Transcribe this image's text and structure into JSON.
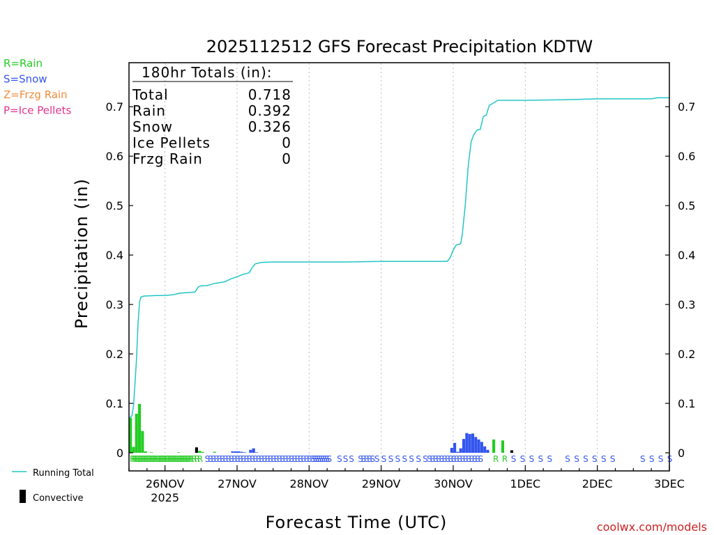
{
  "chart_data": {
    "type": "bar",
    "title": "2025112512 GFS Forecast Precipitation KDTW",
    "xlabel": "Forecast Time (UTC)",
    "ylabel": "Precipitation (in)",
    "ylim": [
      0,
      0.79
    ],
    "xlim_hours": [
      0,
      180
    ],
    "y_ticks": [
      "0",
      "0.1",
      "0.2",
      "0.3",
      "0.4",
      "0.5",
      "0.6",
      "0.7"
    ],
    "y_tick_values": [
      0,
      0.1,
      0.2,
      0.3,
      0.4,
      0.5,
      0.6,
      0.7
    ],
    "x_ticks": [
      {
        "label": "26NOV",
        "hour": 12,
        "sub": "2025"
      },
      {
        "label": "27NOV",
        "hour": 36
      },
      {
        "label": "28NOV",
        "hour": 60
      },
      {
        "label": "29NOV",
        "hour": 84
      },
      {
        "label": "30NOV",
        "hour": 108
      },
      {
        "label": "1DEC",
        "hour": 132
      },
      {
        "label": "2DEC",
        "hour": 156
      },
      {
        "label": "3DEC",
        "hour": 180
      }
    ],
    "legend_types": [
      {
        "label": "R=Rain",
        "color": "#22cc22"
      },
      {
        "label": "S=Snow",
        "color": "#3355ee"
      },
      {
        "label": "Z=Frzg Rain",
        "color": "#f08c3c"
      },
      {
        "label": "P=Ice Pellets",
        "color": "#e0338c"
      }
    ],
    "legend_bottom": [
      {
        "label": "Running Total",
        "color": "#22c5c5",
        "kind": "line"
      },
      {
        "label": "Convective",
        "color": "#000000",
        "kind": "bar"
      }
    ],
    "totals": {
      "heading": "180hr Totals (in):",
      "rows": [
        {
          "label": "Total",
          "value": "0.718"
        },
        {
          "label": "Rain",
          "value": "0.392"
        },
        {
          "label": "Snow",
          "value": "0.326"
        },
        {
          "label": "Ice Pellets",
          "value": "0"
        },
        {
          "label": "Frzg Rain",
          "value": "0"
        }
      ]
    },
    "running_total": [
      [
        0,
        0.07
      ],
      [
        1,
        0.075
      ],
      [
        1.5,
        0.095
      ],
      [
        2,
        0.14
      ],
      [
        2.5,
        0.19
      ],
      [
        3,
        0.26
      ],
      [
        3.5,
        0.305
      ],
      [
        4,
        0.315
      ],
      [
        5,
        0.317
      ],
      [
        9,
        0.318
      ],
      [
        12,
        0.318
      ],
      [
        15,
        0.32
      ],
      [
        17,
        0.323
      ],
      [
        22,
        0.325
      ],
      [
        23,
        0.335
      ],
      [
        24,
        0.338
      ],
      [
        26,
        0.338
      ],
      [
        28,
        0.342
      ],
      [
        30,
        0.344
      ],
      [
        32,
        0.346
      ],
      [
        34,
        0.352
      ],
      [
        36,
        0.356
      ],
      [
        38,
        0.361
      ],
      [
        40,
        0.364
      ],
      [
        41,
        0.374
      ],
      [
        42,
        0.382
      ],
      [
        44,
        0.385
      ],
      [
        48,
        0.386
      ],
      [
        60,
        0.386
      ],
      [
        72,
        0.386
      ],
      [
        84,
        0.387
      ],
      [
        96,
        0.387
      ],
      [
        106,
        0.387
      ],
      [
        107,
        0.395
      ],
      [
        108,
        0.41
      ],
      [
        109,
        0.42
      ],
      [
        110.5,
        0.423
      ],
      [
        111,
        0.44
      ],
      [
        112,
        0.5
      ],
      [
        113,
        0.58
      ],
      [
        114,
        0.63
      ],
      [
        115,
        0.645
      ],
      [
        116,
        0.653
      ],
      [
        117,
        0.654
      ],
      [
        118,
        0.68
      ],
      [
        119,
        0.683
      ],
      [
        120,
        0.703
      ],
      [
        121,
        0.706
      ],
      [
        122,
        0.71
      ],
      [
        123,
        0.713
      ],
      [
        132,
        0.713
      ],
      [
        144,
        0.714
      ],
      [
        150,
        0.715
      ],
      [
        156,
        0.716
      ],
      [
        168,
        0.716
      ],
      [
        174,
        0.716
      ],
      [
        176,
        0.718
      ],
      [
        180,
        0.718
      ]
    ],
    "bars": [
      {
        "hour": 0.5,
        "value": 0.071,
        "type": "R"
      },
      {
        "hour": 1.5,
        "value": 0.012,
        "type": "R"
      },
      {
        "hour": 2.5,
        "value": 0.079,
        "type": "R"
      },
      {
        "hour": 3.5,
        "value": 0.099,
        "type": "R"
      },
      {
        "hour": 4.5,
        "value": 0.044,
        "type": "R"
      },
      {
        "hour": 5.5,
        "value": 0.003,
        "type": "R"
      },
      {
        "hour": 7.5,
        "value": 0.001,
        "type": "R"
      },
      {
        "hour": 16.5,
        "value": 0.001,
        "type": "R"
      },
      {
        "hour": 22.5,
        "value": 0.011,
        "type": "C"
      },
      {
        "hour": 23.5,
        "value": 0.004,
        "type": "R"
      },
      {
        "hour": 24.5,
        "value": 0.002,
        "type": "R"
      },
      {
        "hour": 28.5,
        "value": 0.002,
        "type": "R"
      },
      {
        "hour": 34.5,
        "value": 0.003,
        "type": "S"
      },
      {
        "hour": 35.5,
        "value": 0.003,
        "type": "S"
      },
      {
        "hour": 36.5,
        "value": 0.003,
        "type": "S"
      },
      {
        "hour": 37.5,
        "value": 0.002,
        "type": "S"
      },
      {
        "hour": 38.5,
        "value": 0.001,
        "type": "S"
      },
      {
        "hour": 40.5,
        "value": 0.006,
        "type": "S"
      },
      {
        "hour": 41.5,
        "value": 0.009,
        "type": "S"
      },
      {
        "hour": 42.5,
        "value": 0.001,
        "type": "S"
      },
      {
        "hour": 107.5,
        "value": 0.01,
        "type": "S"
      },
      {
        "hour": 108.5,
        "value": 0.02,
        "type": "S"
      },
      {
        "hour": 109.5,
        "value": 0.002,
        "type": "S"
      },
      {
        "hour": 110.5,
        "value": 0.009,
        "type": "S"
      },
      {
        "hour": 111.5,
        "value": 0.028,
        "type": "S"
      },
      {
        "hour": 112.5,
        "value": 0.04,
        "type": "S"
      },
      {
        "hour": 113.5,
        "value": 0.038,
        "type": "S"
      },
      {
        "hour": 114.5,
        "value": 0.039,
        "type": "S"
      },
      {
        "hour": 115.5,
        "value": 0.032,
        "type": "S"
      },
      {
        "hour": 116.5,
        "value": 0.027,
        "type": "S"
      },
      {
        "hour": 117.5,
        "value": 0.022,
        "type": "S"
      },
      {
        "hour": 118.5,
        "value": 0.013,
        "type": "S"
      },
      {
        "hour": 119.5,
        "value": 0.006,
        "type": "S"
      },
      {
        "hour": 121.5,
        "value": 0.027,
        "type": "R"
      },
      {
        "hour": 124.5,
        "value": 0.025,
        "type": "R"
      },
      {
        "hour": 127.5,
        "value": 0.005,
        "type": "C"
      }
    ],
    "type_strips": [
      {
        "from": 0,
        "to": 19.5,
        "step": 0.5,
        "char": "R"
      },
      {
        "from": 19.5,
        "to": 23,
        "step": 1,
        "char": "R"
      },
      {
        "from": 25,
        "to": 60,
        "step": 1,
        "char": "S"
      },
      {
        "from": 60,
        "to": 66,
        "step": 0.7,
        "char": "S"
      },
      {
        "from": 69,
        "to": 75,
        "step": 2,
        "char": "S"
      },
      {
        "from": 76,
        "to": 81,
        "step": 1,
        "char": "S"
      },
      {
        "from": 81.5,
        "to": 98,
        "step": 2.3,
        "char": "S"
      },
      {
        "from": 99,
        "to": 117,
        "step": 1,
        "char": "S"
      },
      {
        "from": 121,
        "to": 123,
        "step": 3,
        "char": "R"
      },
      {
        "from": 124,
        "to": 126,
        "step": 3,
        "char": "R"
      },
      {
        "from": 127,
        "to": 140,
        "step": 3,
        "char": "S"
      },
      {
        "from": 145,
        "to": 163,
        "step": 3,
        "char": "S"
      },
      {
        "from": 170,
        "to": 181,
        "step": 3,
        "char": "S"
      }
    ]
  },
  "watermark": "coolwx.com/models"
}
